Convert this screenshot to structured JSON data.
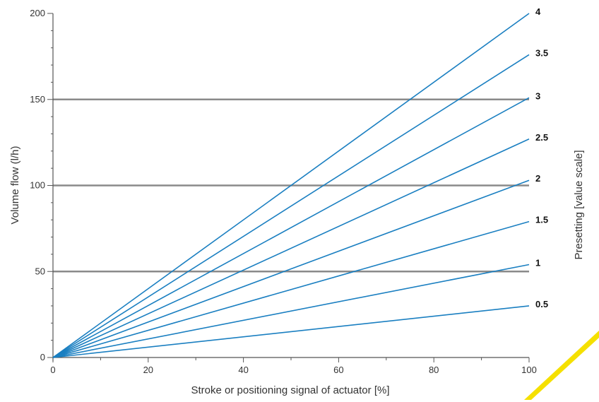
{
  "chart_data": {
    "type": "line",
    "xlabel": "Stroke or positioning signal of actuator [%]",
    "ylabel": "Volume flow (l/h)",
    "y2label": "Presetting [value scale]",
    "xlim": [
      0,
      100
    ],
    "ylim": [
      0,
      200
    ],
    "x_ticks": [
      0,
      20,
      40,
      60,
      80,
      100
    ],
    "y_ticks": [
      0,
      50,
      100,
      150,
      200
    ],
    "grid": "horizontal at 50, 100, 150",
    "colors": {
      "line": "#1a7fc1",
      "grid": "#8a8a8a",
      "axis": "#555555",
      "accent": "#f5e000"
    },
    "series": [
      {
        "name": "4",
        "x": [
          0,
          100
        ],
        "values": [
          0,
          200
        ]
      },
      {
        "name": "3.5",
        "x": [
          0,
          100
        ],
        "values": [
          0,
          176
        ]
      },
      {
        "name": "3",
        "x": [
          0,
          100
        ],
        "values": [
          0,
          151
        ]
      },
      {
        "name": "2.5",
        "x": [
          0,
          100
        ],
        "values": [
          0,
          127
        ]
      },
      {
        "name": "2",
        "x": [
          0,
          100
        ],
        "values": [
          0,
          103
        ]
      },
      {
        "name": "1.5",
        "x": [
          0,
          100
        ],
        "values": [
          0,
          79
        ]
      },
      {
        "name": "1",
        "x": [
          0,
          100
        ],
        "values": [
          0,
          54
        ]
      },
      {
        "name": "0.5",
        "x": [
          0,
          100
        ],
        "values": [
          0,
          30
        ]
      }
    ]
  }
}
